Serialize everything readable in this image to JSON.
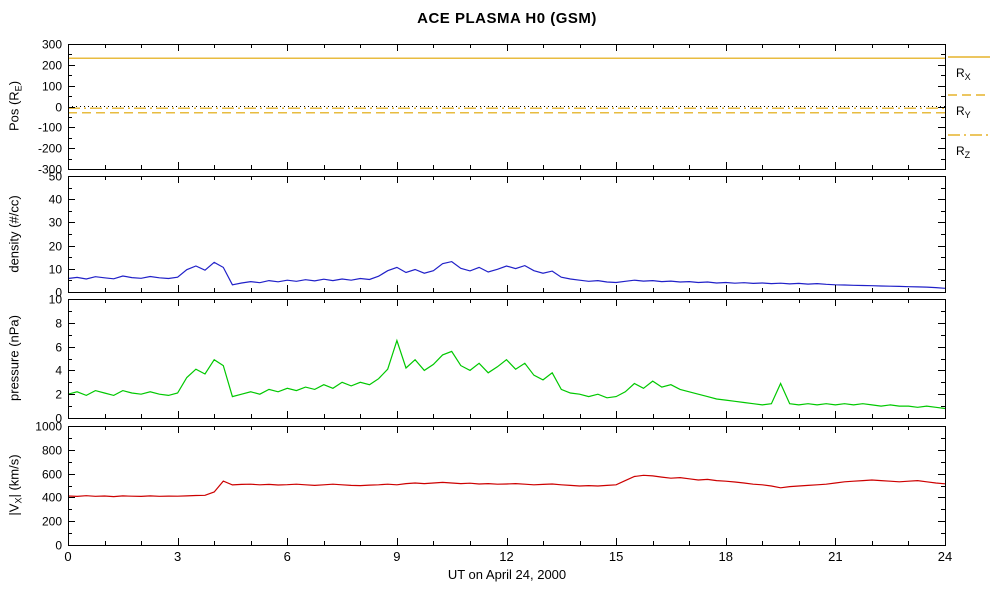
{
  "title": "ACE PLASMA H0 (GSM)",
  "chart_data": {
    "type": "line",
    "title": "ACE PLASMA H0 (GSM)",
    "xlabel": "UT on April 24, 2000",
    "xlim": [
      0,
      24
    ],
    "xticks": [
      0,
      3,
      6,
      9,
      12,
      15,
      18,
      21,
      24
    ],
    "x_minor_step": 1,
    "legend_position": "right-of-top-panel",
    "grid": false,
    "x": [
      0,
      0.25,
      0.5,
      0.75,
      1,
      1.25,
      1.5,
      1.75,
      2,
      2.25,
      2.5,
      2.75,
      3,
      3.25,
      3.5,
      3.75,
      4,
      4.25,
      4.5,
      4.75,
      5,
      5.25,
      5.5,
      5.75,
      6,
      6.25,
      6.5,
      6.75,
      7,
      7.25,
      7.5,
      7.75,
      8,
      8.25,
      8.5,
      8.75,
      9,
      9.25,
      9.5,
      9.75,
      10,
      10.25,
      10.5,
      10.75,
      11,
      11.25,
      11.5,
      11.75,
      12,
      12.25,
      12.5,
      12.75,
      13,
      13.25,
      13.5,
      13.75,
      14,
      14.25,
      14.5,
      14.75,
      15,
      15.25,
      15.5,
      15.75,
      16,
      16.25,
      16.5,
      16.75,
      17,
      17.25,
      17.5,
      17.75,
      18,
      18.25,
      18.5,
      18.75,
      19,
      19.25,
      19.5,
      19.75,
      20,
      20.25,
      20.5,
      20.75,
      21,
      21.25,
      21.5,
      21.75,
      22,
      22.25,
      22.5,
      22.75,
      23,
      23.25,
      23.5,
      23.75,
      24
    ],
    "panels": [
      {
        "name": "position",
        "ylabel": {
          "pre": "Pos (R",
          "sub": "E",
          "post": ")"
        },
        "ylim": [
          -300,
          300
        ],
        "yticks": [
          -300,
          -200,
          -100,
          0,
          100,
          200,
          300
        ],
        "y_minor_step": 50,
        "zero_line": true,
        "series": [
          {
            "label_pre": "R",
            "label_sub": "X",
            "dash": "solid",
            "color": "#E0A500",
            "x": [
              0,
              24
            ],
            "y": [
              232,
              232
            ]
          },
          {
            "label_pre": "R",
            "label_sub": "Y",
            "dash": "dashed",
            "color": "#E0A500",
            "x": [
              0,
              24
            ],
            "y": [
              -30,
              -30
            ]
          },
          {
            "label_pre": "R",
            "label_sub": "Z",
            "dash": "dashdot",
            "color": "#E0A500",
            "x": [
              0,
              24
            ],
            "y": [
              -8,
              -8
            ]
          }
        ]
      },
      {
        "name": "density",
        "ylabel": {
          "pre": "density (#/cc)",
          "sub": "",
          "post": ""
        },
        "ylim": [
          0,
          50
        ],
        "yticks": [
          0,
          10,
          20,
          30,
          40,
          50
        ],
        "y_minor_step": 5,
        "zero_line": false,
        "series": [
          {
            "label_pre": "density",
            "label_sub": "",
            "dash": "solid",
            "color": "#2020C8",
            "y": [
              5.8,
              6.3,
              5.6,
              6.6,
              6.1,
              5.7,
              6.9,
              6.2,
              5.9,
              6.7,
              6.1,
              5.8,
              6.4,
              9.6,
              11.2,
              9.4,
              12.8,
              10.6,
              3.1,
              3.9,
              4.5,
              4.0,
              4.9,
              4.4,
              5.1,
              4.6,
              5.3,
              4.8,
              5.5,
              4.9,
              5.6,
              5.1,
              5.8,
              5.4,
              6.8,
              9.2,
              10.6,
              8.4,
              9.7,
              8.1,
              9.2,
              12.2,
              13.1,
              10.2,
              9.1,
              10.6,
              8.6,
              9.8,
              11.2,
              10.1,
              11.4,
              9.2,
              8.1,
              9.0,
              6.4,
              5.6,
              5.1,
              4.6,
              4.9,
              4.3,
              4.1,
              4.6,
              5.1,
              4.7,
              4.9,
              4.5,
              4.7,
              4.3,
              4.5,
              4.1,
              4.3,
              3.9,
              4.1,
              3.8,
              4.0,
              3.7,
              3.9,
              3.6,
              3.8,
              3.5,
              3.7,
              3.4,
              3.6,
              3.3,
              3.1,
              3.0,
              2.9,
              2.8,
              2.7,
              2.6,
              2.5,
              2.4,
              2.3,
              2.2,
              2.1,
              1.9,
              1.6
            ]
          }
        ]
      },
      {
        "name": "pressure",
        "ylabel": {
          "pre": "pressure (nPa)",
          "sub": "",
          "post": ""
        },
        "ylim": [
          0,
          10
        ],
        "yticks": [
          0,
          2,
          4,
          6,
          8,
          10
        ],
        "y_minor_step": 1,
        "zero_line": false,
        "series": [
          {
            "label_pre": "pressure",
            "label_sub": "",
            "dash": "solid",
            "color": "#00C800",
            "y": [
              2.0,
              2.2,
              1.9,
              2.3,
              2.1,
              1.9,
              2.3,
              2.1,
              2.0,
              2.2,
              2.0,
              1.9,
              2.1,
              3.4,
              4.1,
              3.7,
              4.9,
              4.4,
              1.8,
              2.0,
              2.2,
              2.0,
              2.4,
              2.2,
              2.5,
              2.3,
              2.6,
              2.4,
              2.8,
              2.5,
              3.0,
              2.7,
              3.0,
              2.8,
              3.3,
              4.1,
              6.5,
              4.2,
              4.9,
              4.0,
              4.5,
              5.3,
              5.6,
              4.4,
              4.0,
              4.6,
              3.8,
              4.3,
              4.9,
              4.1,
              4.6,
              3.6,
              3.2,
              3.8,
              2.4,
              2.1,
              2.0,
              1.8,
              2.0,
              1.7,
              1.8,
              2.2,
              2.9,
              2.5,
              3.1,
              2.6,
              2.8,
              2.4,
              2.2,
              2.0,
              1.8,
              1.6,
              1.5,
              1.4,
              1.3,
              1.2,
              1.1,
              1.2,
              2.9,
              1.2,
              1.1,
              1.2,
              1.1,
              1.2,
              1.1,
              1.2,
              1.1,
              1.2,
              1.1,
              1.0,
              1.1,
              1.0,
              1.0,
              0.9,
              1.0,
              0.9,
              0.8
            ]
          }
        ]
      },
      {
        "name": "velocity",
        "ylabel": {
          "pre": "|V",
          "sub": "X",
          "post": "| (km/s)"
        },
        "ylim": [
          0,
          1000
        ],
        "yticks": [
          0,
          200,
          400,
          600,
          800,
          1000
        ],
        "y_minor_step": 100,
        "zero_line": false,
        "series": [
          {
            "label_pre": "|Vx|",
            "label_sub": "",
            "dash": "solid",
            "color": "#CC0000",
            "y": [
              412,
              408,
              414,
              409,
              412,
              407,
              413,
              410,
              408,
              413,
              409,
              411,
              410,
              413,
              416,
              418,
              445,
              537,
              505,
              509,
              511,
              506,
              509,
              504,
              507,
              511,
              506,
              501,
              506,
              511,
              506,
              501,
              499,
              503,
              506,
              511,
              506,
              516,
              521,
              516,
              521,
              526,
              521,
              516,
              519,
              513,
              516,
              511,
              513,
              516,
              511,
              506,
              509,
              513,
              506,
              501,
              496,
              499,
              496,
              501,
              506,
              541,
              576,
              586,
              581,
              571,
              561,
              566,
              556,
              546,
              551,
              541,
              536,
              529,
              521,
              511,
              506,
              496,
              481,
              491,
              496,
              501,
              506,
              511,
              521,
              531,
              536,
              541,
              546,
              541,
              536,
              531,
              536,
              541,
              531,
              521,
              514
            ]
          }
        ]
      }
    ]
  }
}
